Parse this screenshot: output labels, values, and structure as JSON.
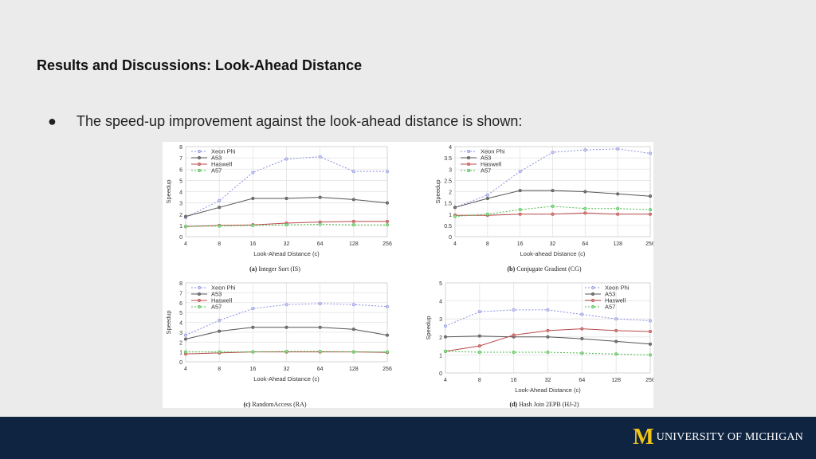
{
  "slide": {
    "title": "Results and Discussions: Look-Ahead Distance",
    "bullet_glyph": "●",
    "bullet": "The speed-up improvement against the look-ahead distance is shown:"
  },
  "footer": {
    "logo_mark": "M",
    "logo_text": "UNIVERSITY OF MICHIGAN",
    "background": "#0f2441",
    "logo_color": "#f0c418"
  },
  "series_colors": {
    "Xeon Phi": "#8a8fe0",
    "A53": "#555555",
    "Haswell": "#b84a4a",
    "A57": "#4cbb4c"
  },
  "chart_data": [
    {
      "type": "line",
      "caption_tag": "(a)",
      "caption": "Integer Sort (IS)",
      "xlabel": "Look-Ahead Distance (c)",
      "ylabel": "Speedup",
      "categories": [
        "4",
        "8",
        "16",
        "32",
        "64",
        "128",
        "256"
      ],
      "yticks": [
        "0",
        "1",
        "2",
        "3",
        "4",
        "5",
        "6",
        "7",
        "8"
      ],
      "ylim": [
        0,
        8
      ],
      "grid": true,
      "legend": "top-left",
      "series": [
        {
          "name": "Xeon Phi",
          "values": [
            1.7,
            3.2,
            5.7,
            6.9,
            7.1,
            5.8,
            5.8
          ]
        },
        {
          "name": "A53",
          "values": [
            1.8,
            2.6,
            3.4,
            3.4,
            3.5,
            3.3,
            3.0
          ]
        },
        {
          "name": "Haswell",
          "values": [
            0.9,
            1.0,
            1.05,
            1.2,
            1.3,
            1.35,
            1.35
          ]
        },
        {
          "name": "A57",
          "values": [
            0.9,
            0.95,
            1.0,
            1.05,
            1.1,
            1.05,
            1.05
          ]
        }
      ]
    },
    {
      "type": "line",
      "caption_tag": "(b)",
      "caption": "Conjugate Gradient (CG)",
      "xlabel": "Look-ahead Distance (c)",
      "ylabel": "Speedup",
      "categories": [
        "4",
        "8",
        "16",
        "32",
        "64",
        "128",
        "256"
      ],
      "yticks": [
        "0",
        "0.5",
        "1",
        "1.5",
        "2",
        "2.5",
        "3",
        "3.5",
        "4"
      ],
      "ylim": [
        0,
        4
      ],
      "grid": true,
      "legend": "top-left",
      "series": [
        {
          "name": "Xeon Phi",
          "values": [
            1.3,
            1.85,
            2.9,
            3.75,
            3.85,
            3.9,
            3.7
          ]
        },
        {
          "name": "A53",
          "values": [
            1.3,
            1.7,
            2.05,
            2.05,
            2.0,
            1.9,
            1.8
          ]
        },
        {
          "name": "Haswell",
          "values": [
            0.95,
            0.95,
            1.0,
            1.0,
            1.05,
            1.0,
            1.0
          ]
        },
        {
          "name": "A57",
          "values": [
            0.9,
            1.0,
            1.2,
            1.35,
            1.25,
            1.25,
            1.2
          ]
        }
      ]
    },
    {
      "type": "line",
      "caption_tag": "(c)",
      "caption": "RandomAccess (RA)",
      "xlabel": "Look-Ahead Distance (c)",
      "ylabel": "Speedup",
      "categories": [
        "4",
        "8",
        "16",
        "32",
        "64",
        "128",
        "256"
      ],
      "yticks": [
        "0",
        "1",
        "2",
        "3",
        "4",
        "5",
        "6",
        "7",
        "8"
      ],
      "ylim": [
        0,
        8
      ],
      "grid": true,
      "legend": "top-left",
      "series": [
        {
          "name": "Xeon Phi",
          "values": [
            2.7,
            4.2,
            5.4,
            5.8,
            5.9,
            5.8,
            5.6
          ]
        },
        {
          "name": "A53",
          "values": [
            2.3,
            3.1,
            3.5,
            3.5,
            3.5,
            3.3,
            2.7
          ]
        },
        {
          "name": "Haswell",
          "values": [
            0.8,
            0.9,
            1.0,
            1.0,
            1.0,
            1.0,
            0.95
          ]
        },
        {
          "name": "A57",
          "values": [
            1.0,
            1.0,
            1.0,
            1.05,
            1.05,
            1.0,
            1.0
          ]
        }
      ]
    },
    {
      "type": "line",
      "caption_tag": "(d)",
      "caption": "Hash Join 2EPB (HJ-2)",
      "xlabel": "Look-Ahead Distance (c)",
      "ylabel": "Speedup",
      "categories": [
        "4",
        "8",
        "16",
        "32",
        "64",
        "128",
        "256"
      ],
      "yticks": [
        "0",
        "1",
        "2",
        "3",
        "4",
        "5"
      ],
      "ylim": [
        0,
        5
      ],
      "grid": true,
      "legend": "top-right",
      "series": [
        {
          "name": "Xeon Phi",
          "values": [
            2.6,
            3.4,
            3.5,
            3.5,
            3.25,
            3.0,
            2.9
          ]
        },
        {
          "name": "A53",
          "values": [
            2.0,
            2.05,
            2.0,
            2.0,
            1.9,
            1.75,
            1.6
          ]
        },
        {
          "name": "Haswell",
          "values": [
            1.2,
            1.5,
            2.1,
            2.35,
            2.45,
            2.35,
            2.3
          ]
        },
        {
          "name": "A57",
          "values": [
            1.2,
            1.15,
            1.15,
            1.15,
            1.1,
            1.05,
            1.0
          ]
        }
      ]
    }
  ]
}
